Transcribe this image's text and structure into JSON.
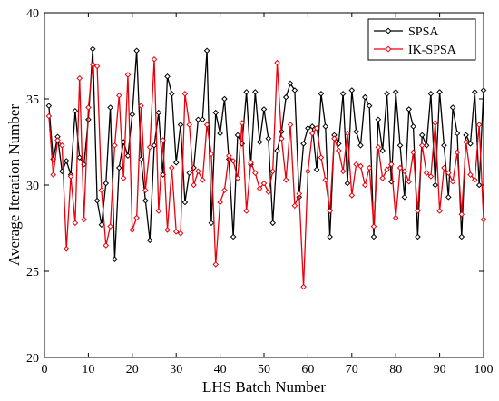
{
  "chart_data": {
    "type": "line",
    "xlabel": "LHS Batch Number",
    "ylabel": "Average Iteration Number",
    "xlim": [
      0,
      100
    ],
    "ylim": [
      20,
      40
    ],
    "xticks": [
      0,
      10,
      20,
      30,
      40,
      50,
      60,
      70,
      80,
      90,
      100
    ],
    "yticks": [
      20,
      25,
      30,
      35,
      40
    ],
    "grid": false,
    "legend_position": "top-right",
    "marker": "open-diamond",
    "x": [
      1,
      2,
      3,
      4,
      5,
      6,
      7,
      8,
      9,
      10,
      11,
      12,
      13,
      14,
      15,
      16,
      17,
      18,
      19,
      20,
      21,
      22,
      23,
      24,
      25,
      26,
      27,
      28,
      29,
      30,
      31,
      32,
      33,
      34,
      35,
      36,
      37,
      38,
      39,
      40,
      41,
      42,
      43,
      44,
      45,
      46,
      47,
      48,
      49,
      50,
      51,
      52,
      53,
      54,
      55,
      56,
      57,
      58,
      59,
      60,
      61,
      62,
      63,
      64,
      65,
      66,
      67,
      68,
      69,
      70,
      71,
      72,
      73,
      74,
      75,
      76,
      77,
      78,
      79,
      80,
      81,
      82,
      83,
      84,
      85,
      86,
      87,
      88,
      89,
      90,
      91,
      92,
      93,
      94,
      95,
      96,
      97,
      98,
      99,
      100
    ],
    "series": [
      {
        "name": "SPSA",
        "color": "#000000",
        "values": [
          34.6,
          31.5,
          32.8,
          30.8,
          31.4,
          30.6,
          34.3,
          31.6,
          31.2,
          33.8,
          37.9,
          29.1,
          27.7,
          30.1,
          34.5,
          25.7,
          31.0,
          32.5,
          31.7,
          34.1,
          37.8,
          31.5,
          29.1,
          26.8,
          32.3,
          34.2,
          30.6,
          36.3,
          35.3,
          31.3,
          33.5,
          29.0,
          30.7,
          31.0,
          33.8,
          33.8,
          37.8,
          27.8,
          34.2,
          33.0,
          35.0,
          31.5,
          27.0,
          32.9,
          32.4,
          35.4,
          31.2,
          35.4,
          32.5,
          34.4,
          32.7,
          27.8,
          32.0,
          33.1,
          35.1,
          35.9,
          35.5,
          29.3,
          32.4,
          33.3,
          33.4,
          30.9,
          35.3,
          33.4,
          27.0,
          32.9,
          32.4,
          35.3,
          30.1,
          35.5,
          33.1,
          32.3,
          35.1,
          34.6,
          27.0,
          33.8,
          32.0,
          35.3,
          30.2,
          35.4,
          32.3,
          29.3,
          34.4,
          33.4,
          27.0,
          32.9,
          32.3,
          35.3,
          30.0,
          35.4,
          32.3,
          29.3,
          34.5,
          33.0,
          27.0,
          32.9,
          32.4,
          35.4,
          30.0,
          35.5
        ]
      },
      {
        "name": "IK-SPSA",
        "color": "#e8000b",
        "values": [
          34.0,
          30.6,
          32.6,
          32.3,
          26.3,
          30.5,
          27.8,
          36.2,
          28.0,
          34.5,
          37.0,
          36.9,
          29.7,
          26.5,
          27.6,
          32.3,
          35.2,
          30.4,
          36.4,
          27.4,
          28.1,
          34.6,
          29.7,
          32.2,
          37.3,
          28.5,
          32.6,
          27.4,
          31.0,
          27.3,
          27.2,
          35.3,
          33.5,
          30.0,
          30.8,
          30.3,
          33.5,
          31.8,
          25.4,
          29.0,
          29.7,
          31.7,
          31.4,
          30.4,
          33.6,
          28.5,
          31.3,
          30.7,
          29.8,
          30.1,
          29.6,
          30.8,
          37.1,
          32.7,
          30.3,
          33.5,
          28.8,
          29.5,
          24.1,
          30.8,
          33.0,
          33.3,
          31.6,
          30.3,
          28.5,
          32.7,
          32.0,
          30.8,
          33.0,
          29.4,
          31.2,
          31.1,
          30.0,
          31.0,
          27.6,
          32.2,
          30.4,
          30.9,
          31.2,
          28.1,
          31.0,
          30.8,
          30.2,
          31.9,
          28.5,
          32.3,
          30.7,
          30.5,
          33.6,
          28.5,
          31.0,
          30.7,
          30.2,
          31.9,
          28.3,
          32.5,
          30.6,
          30.3,
          33.5,
          28.0
        ]
      }
    ]
  }
}
